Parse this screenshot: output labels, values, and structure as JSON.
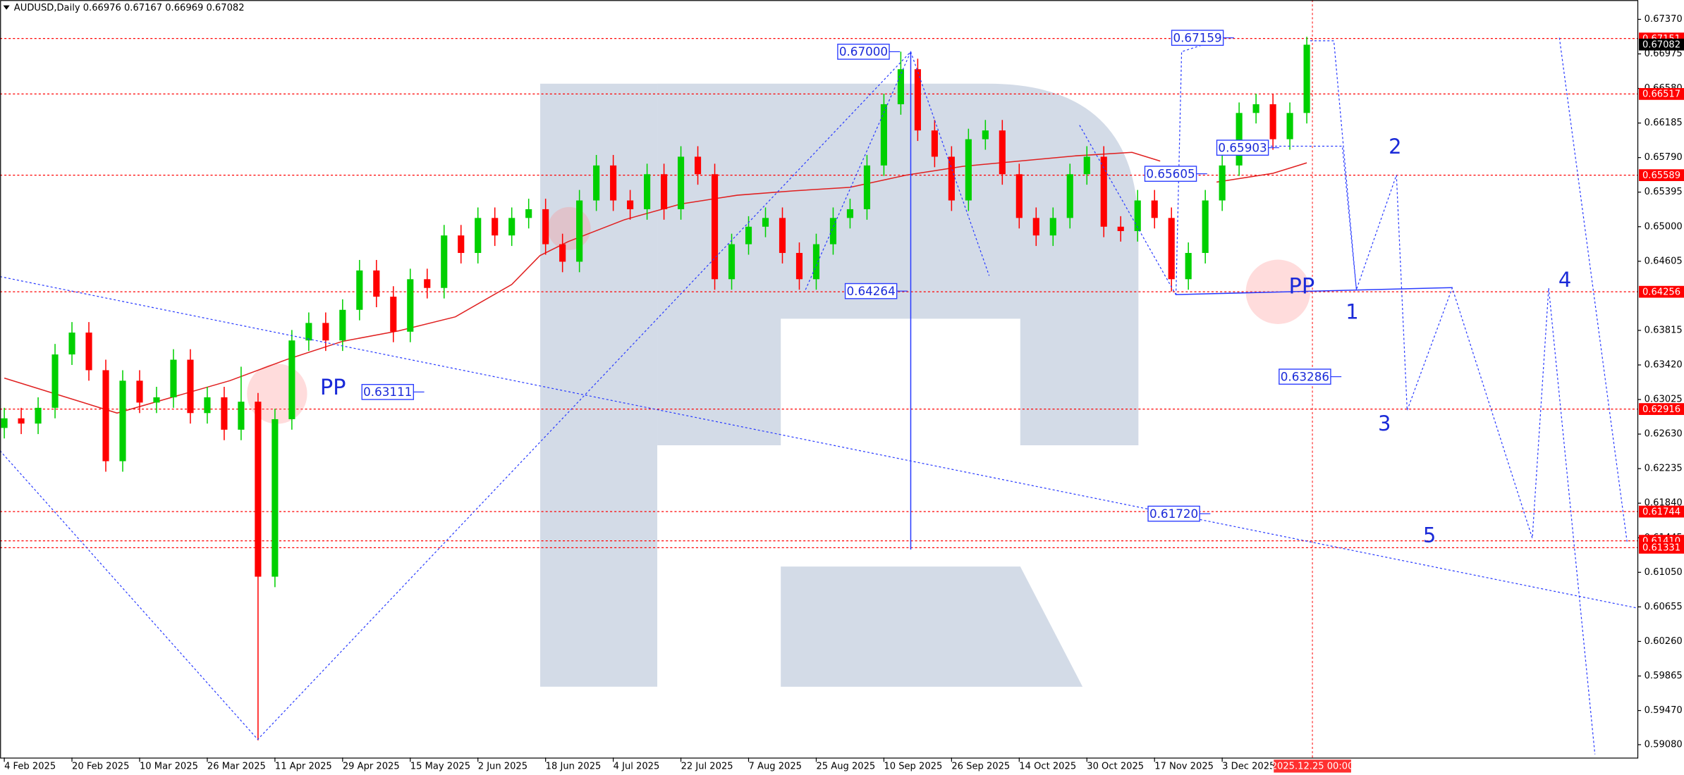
{
  "chart_data": {
    "type": "candlestick",
    "title": "AUDUSD,Daily  0.66976 0.67167 0.66969 0.67082",
    "xlim": [
      -0.762,
      289.71
    ],
    "ylim": [
      0.58933,
      0.67591
    ],
    "xticks": [
      {
        "value": 0,
        "label": "4 Feb 2025"
      },
      {
        "value": 12,
        "label": "20 Feb 2025"
      },
      {
        "value": 24,
        "label": "10 Mar 2025"
      },
      {
        "value": 36,
        "label": "26 Mar 2025"
      },
      {
        "value": 48,
        "label": "11 Apr 2025"
      },
      {
        "value": 60,
        "label": "29 Apr 2025"
      },
      {
        "value": 72,
        "label": "15 May 2025"
      },
      {
        "value": 84,
        "label": "2 Jun 2025"
      },
      {
        "value": 96,
        "label": "18 Jun 2025"
      },
      {
        "value": 108,
        "label": "4 Jul 2025"
      },
      {
        "value": 120,
        "label": "22 Jul 2025"
      },
      {
        "value": 132,
        "label": "7 Aug 2025"
      },
      {
        "value": 144,
        "label": "25 Aug 2025"
      },
      {
        "value": 156,
        "label": "10 Sep 2025"
      },
      {
        "value": 168,
        "label": "26 Sep 2025"
      },
      {
        "value": 180,
        "label": "14 Oct 2025"
      },
      {
        "value": 192,
        "label": "30 Oct 2025"
      },
      {
        "value": 204,
        "label": "17 Nov 2025"
      },
      {
        "value": 216,
        "label": "3 Dec 2025"
      }
    ],
    "time_marker": {
      "value": 232,
      "label": "2025.12.25 00:00",
      "color": "#ff3030"
    },
    "yticks": [
      {
        "value": 0.6737,
        "label": "0.67370"
      },
      0.66975,
      {
        "value": 0.6658,
        "label": "0.66580"
      },
      0.66185,
      {
        "value": 0.6579,
        "label": "0.65790"
      },
      0.65395,
      {
        "value": 0.65,
        "label": "0.65000"
      },
      0.64605,
      0.63815,
      {
        "value": 0.6342,
        "label": "0.63420"
      },
      0.63025,
      {
        "value": 0.6263,
        "label": "0.62630"
      },
      0.62235,
      {
        "value": 0.6184,
        "label": "0.61840"
      },
      0.61445,
      {
        "value": 0.6105,
        "label": "0.61050"
      },
      0.60655,
      {
        "value": 0.6026,
        "label": "0.60260"
      },
      0.59865,
      {
        "value": 0.5947,
        "label": "0.59470"
      },
      {
        "value": 0.5908,
        "label": "0.59080"
      }
    ],
    "candles": {
      "up_color": "#00d000",
      "down_color": "#ff0000",
      "x": [
        0,
        3,
        6,
        9,
        12,
        15,
        18,
        21,
        24,
        27,
        30,
        33,
        36,
        39,
        42,
        45,
        48,
        51,
        54,
        57,
        60,
        63,
        66,
        69,
        72,
        75,
        78,
        81,
        84,
        87,
        90,
        93,
        96,
        99,
        102,
        105,
        108,
        111,
        114,
        117,
        120,
        123,
        126,
        129,
        132,
        135,
        138,
        141,
        144,
        147,
        150,
        153,
        156,
        159,
        162,
        165,
        168,
        171,
        174,
        177,
        180,
        183,
        186,
        189,
        192,
        195,
        198,
        201,
        204,
        207,
        210,
        213,
        216,
        219,
        222,
        225,
        228,
        231
      ],
      "open": [
        0.627,
        0.6281,
        0.6275,
        0.6293,
        0.6354,
        0.6379,
        0.6336,
        0.6232,
        0.6324,
        0.6299,
        0.6305,
        0.6348,
        0.6287,
        0.6305,
        0.6268,
        0.63,
        0.61,
        0.628,
        0.637,
        0.639,
        0.637,
        0.6405,
        0.645,
        0.642,
        0.638,
        0.644,
        0.643,
        0.649,
        0.647,
        0.651,
        0.649,
        0.651,
        0.652,
        0.648,
        0.646,
        0.653,
        0.657,
        0.653,
        0.652,
        0.656,
        0.652,
        0.658,
        0.656,
        0.644,
        0.648,
        0.65,
        0.651,
        0.647,
        0.644,
        0.648,
        0.651,
        0.652,
        0.657,
        0.664,
        0.668,
        0.661,
        0.658,
        0.653,
        0.66,
        0.661,
        0.656,
        0.651,
        0.649,
        0.651,
        0.656,
        0.658,
        0.65,
        0.6495,
        0.653,
        0.651,
        0.644,
        0.647,
        0.653,
        0.657,
        0.663,
        0.664,
        0.66,
        0.663
      ],
      "high": [
        0.6293,
        0.6293,
        0.6305,
        0.6366,
        0.6391,
        0.6391,
        0.6348,
        0.6336,
        0.6336,
        0.6317,
        0.636,
        0.636,
        0.6317,
        0.6317,
        0.634,
        0.631,
        0.6292,
        0.6382,
        0.6402,
        0.6402,
        0.6417,
        0.6462,
        0.6462,
        0.6432,
        0.6452,
        0.6452,
        0.6502,
        0.6502,
        0.6522,
        0.6522,
        0.6522,
        0.6532,
        0.6532,
        0.6492,
        0.6542,
        0.6582,
        0.6582,
        0.6542,
        0.6572,
        0.6572,
        0.6592,
        0.6592,
        0.6572,
        0.6492,
        0.6512,
        0.6522,
        0.6522,
        0.6482,
        0.6492,
        0.6522,
        0.6532,
        0.6582,
        0.6652,
        0.67,
        0.6692,
        0.6622,
        0.6592,
        0.6612,
        0.6622,
        0.6622,
        0.6572,
        0.6522,
        0.6522,
        0.6572,
        0.6592,
        0.6592,
        0.6512,
        0.6542,
        0.6542,
        0.6522,
        0.6482,
        0.6542,
        0.6582,
        0.6642,
        0.6652,
        0.6652,
        0.6642,
        0.6717
      ],
      "low": [
        0.6258,
        0.6263,
        0.6263,
        0.6281,
        0.6342,
        0.6324,
        0.622,
        0.622,
        0.6287,
        0.6287,
        0.6293,
        0.6275,
        0.6275,
        0.6256,
        0.6256,
        0.5913,
        0.6088,
        0.6268,
        0.6358,
        0.6358,
        0.6358,
        0.6393,
        0.6408,
        0.6368,
        0.6368,
        0.6418,
        0.6418,
        0.6458,
        0.6458,
        0.6478,
        0.6478,
        0.6498,
        0.6468,
        0.6448,
        0.6448,
        0.6518,
        0.6518,
        0.6508,
        0.6508,
        0.6508,
        0.6508,
        0.6548,
        0.6428,
        0.6428,
        0.6468,
        0.6488,
        0.6458,
        0.6428,
        0.6428,
        0.6468,
        0.6498,
        0.6508,
        0.6558,
        0.6628,
        0.6598,
        0.6568,
        0.6518,
        0.6518,
        0.6588,
        0.6548,
        0.6498,
        0.6478,
        0.6478,
        0.6498,
        0.6548,
        0.6488,
        0.6483,
        0.6483,
        0.6498,
        0.6426,
        0.6428,
        0.6458,
        0.6518,
        0.6558,
        0.6618,
        0.6588,
        0.6588,
        0.6618
      ],
      "close": [
        0.6281,
        0.6275,
        0.6293,
        0.6354,
        0.6379,
        0.6336,
        0.6232,
        0.6324,
        0.6299,
        0.6305,
        0.6348,
        0.6287,
        0.6305,
        0.6268,
        0.63,
        0.61,
        0.628,
        0.637,
        0.639,
        0.637,
        0.6405,
        0.645,
        0.642,
        0.638,
        0.644,
        0.643,
        0.649,
        0.647,
        0.651,
        0.649,
        0.651,
        0.652,
        0.648,
        0.646,
        0.653,
        0.657,
        0.653,
        0.652,
        0.656,
        0.652,
        0.658,
        0.656,
        0.644,
        0.648,
        0.65,
        0.651,
        0.647,
        0.644,
        0.648,
        0.651,
        0.652,
        0.657,
        0.664,
        0.668,
        0.661,
        0.658,
        0.653,
        0.66,
        0.661,
        0.656,
        0.651,
        0.649,
        0.651,
        0.656,
        0.658,
        0.65,
        0.6495,
        0.653,
        0.651,
        0.644,
        0.647,
        0.653,
        0.657,
        0.663,
        0.664,
        0.66,
        0.663,
        0.6708
      ]
    },
    "moving_average": {
      "color": "#e02020",
      "x": [
        0,
        20,
        40,
        50,
        60,
        70,
        80,
        90,
        95,
        100,
        110,
        120,
        130,
        140,
        150,
        160,
        170,
        180,
        190,
        200,
        205,
        212,
        215,
        225,
        231
      ],
      "values": [
        0.6327,
        0.6287,
        0.6324,
        0.6348,
        0.6369,
        0.6381,
        0.6397,
        0.6434,
        0.6467,
        0.6483,
        0.6508,
        0.6526,
        0.6536,
        0.6541,
        0.6545,
        0.6559,
        0.6569,
        0.6575,
        0.6581,
        0.6585,
        0.6575,
        null,
        0.6551,
        0.6561,
        0.6573
      ]
    },
    "lines": [
      {
        "color": "#2a3cff",
        "style": "dotted",
        "x": [
          -0.762,
          289.71
        ],
        "values": [
          0.6443,
          0.6064
        ]
      },
      {
        "color": "#2a3cff",
        "style": "dotted",
        "x": [
          -0.762,
          44.95,
          160.76,
          174.67
        ],
        "values": [
          0.6244,
          0.5914,
          0.67,
          0.6444
        ]
      },
      {
        "color": "#2a3cff",
        "style": "solid",
        "x": [
          160.76,
          160.76
        ],
        "values": [
          0.67,
          0.6131
        ]
      },
      {
        "color": "#2a3cff",
        "style": "dotted",
        "x": [
          142.1,
          160.76
        ],
        "values": [
          0.6428,
          0.67
        ]
      },
      {
        "color": "#2a3cff",
        "style": "dotted",
        "x": [
          190.7,
          207.8
        ],
        "values": [
          0.6616,
          0.6422
        ]
      },
      {
        "color": "#2a3cff",
        "style": "dotted",
        "x": [
          207.8,
          208.8,
          216.4
        ],
        "values": [
          0.6422,
          0.67,
          0.6716
        ]
      },
      {
        "color": "#2a3cff",
        "style": "solid",
        "x": [
          207.8,
          256.8
        ],
        "values": [
          0.64224,
          0.64304
        ]
      },
      {
        "color": "#2a3cff",
        "style": "dotted",
        "x": [
          224.6,
          237.3,
          239.8
        ],
        "values": [
          0.6592,
          0.6592,
          0.6428
        ]
      },
      {
        "color": "#2a3cff",
        "style": "dotted",
        "x": [
          231.6,
          235.8,
          239.8,
          246.9,
          248.8,
          256.8,
          271.0,
          273.9,
          282.1
        ],
        "values": [
          0.67125,
          0.67125,
          0.6428,
          0.6559,
          0.629,
          0.643,
          0.6144,
          0.643,
          0.5897
        ]
      },
      {
        "color": "#2a3cff",
        "style": "dotted",
        "x": [
          275.8,
          287.8
        ],
        "values": [
          0.6716,
          0.614
        ]
      }
    ],
    "level_color": "#ff0000",
    "levels": [
      0.67151,
      0.66517,
      0.65589,
      0.64256,
      0.62916,
      0.61744,
      {
        "value": 0.6141,
        "label": "0.61410"
      },
      0.61331
    ],
    "current_price": 0.67082,
    "annotations": [
      {
        "value": 0.67,
        "label": "0.67000"
      },
      0.64264,
      0.63111,
      0.65605,
      0.65903,
      0.67159,
      0.63286,
      {
        "value": 0.6172,
        "label": "0.61720"
      }
    ],
    "pivots": [
      "PP",
      "PP"
    ],
    "waves": [
      1,
      2,
      3,
      4,
      5
    ]
  }
}
